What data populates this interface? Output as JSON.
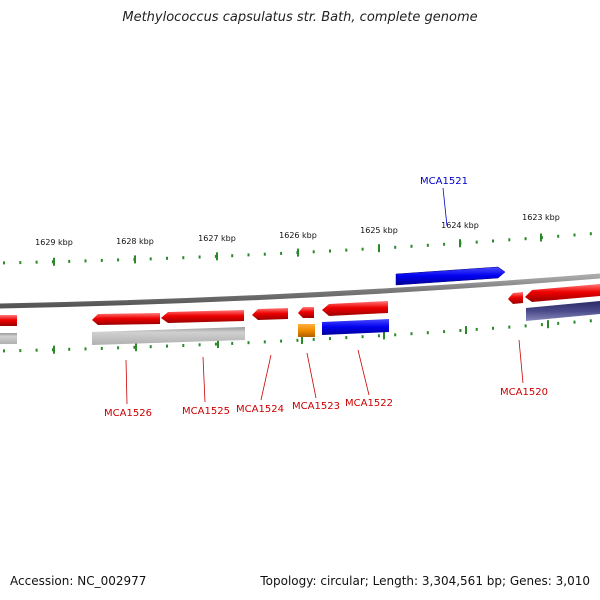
{
  "title": "Methylococcus capsulatus str. Bath, complete genome",
  "footer": {
    "accession": "Accession: NC_002977",
    "stats": "Topology: circular; Length: 3,304,561 bp; Genes: 3,010"
  },
  "scale_labels": [
    "1629 kbp",
    "1628 kbp",
    "1627 kbp",
    "1626 kbp",
    "1625 kbp",
    "1624 kbp",
    "1623 kbp"
  ],
  "gene_labels": [
    "MCA1521",
    "MCA1526",
    "MCA1525",
    "MCA1524",
    "MCA1523",
    "MCA1522",
    "MCA1520"
  ],
  "colors": {
    "forward_gene": "#0000ee",
    "reverse_gene": "#ee0000",
    "orange_gene": "#f08a00",
    "grey_feature": "#b8b8b8",
    "purple_feature": "#4a4a8a",
    "backbone": "#888888",
    "ticks": "#2a8a2a"
  }
}
